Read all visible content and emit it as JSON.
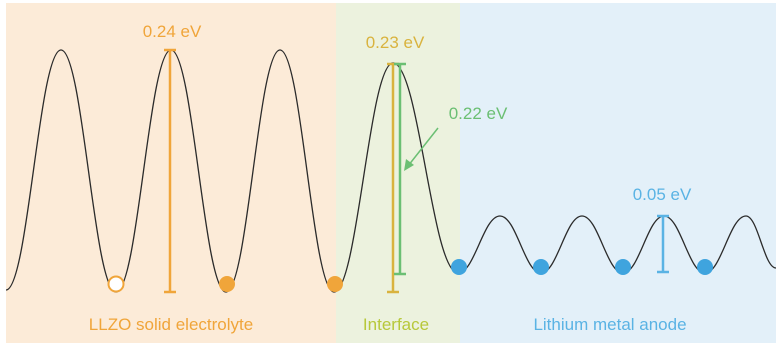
{
  "regions": [
    {
      "key": "llzo",
      "label": "LLZO solid electrolyte",
      "fill": "#fcebd8",
      "text_color": "#f0a53a"
    },
    {
      "key": "interface",
      "label": "Interface",
      "fill": "#ecf2de",
      "text_color": "#b7c83a"
    },
    {
      "key": "anode",
      "label": "Lithium metal anode",
      "fill": "#e3f0f9",
      "text_color": "#5ab3e4"
    }
  ],
  "barriers": [
    {
      "key": "llzo",
      "value_label": "0.24 eV",
      "color": "#f0a53a"
    },
    {
      "key": "interface_high",
      "value_label": "0.23 eV",
      "color": "#d9b33e"
    },
    {
      "key": "interface_low",
      "value_label": "0.22 eV",
      "color": "#6bbf73"
    },
    {
      "key": "anode",
      "value_label": "0.05 eV",
      "color": "#5ab3e4"
    }
  ],
  "markers": {
    "vacancy_color": "#f0a53a",
    "llzo_ion_color": "#f0a53a",
    "anode_ion_color": "#3fa4de"
  },
  "curve_color": "#2b2b2b"
}
